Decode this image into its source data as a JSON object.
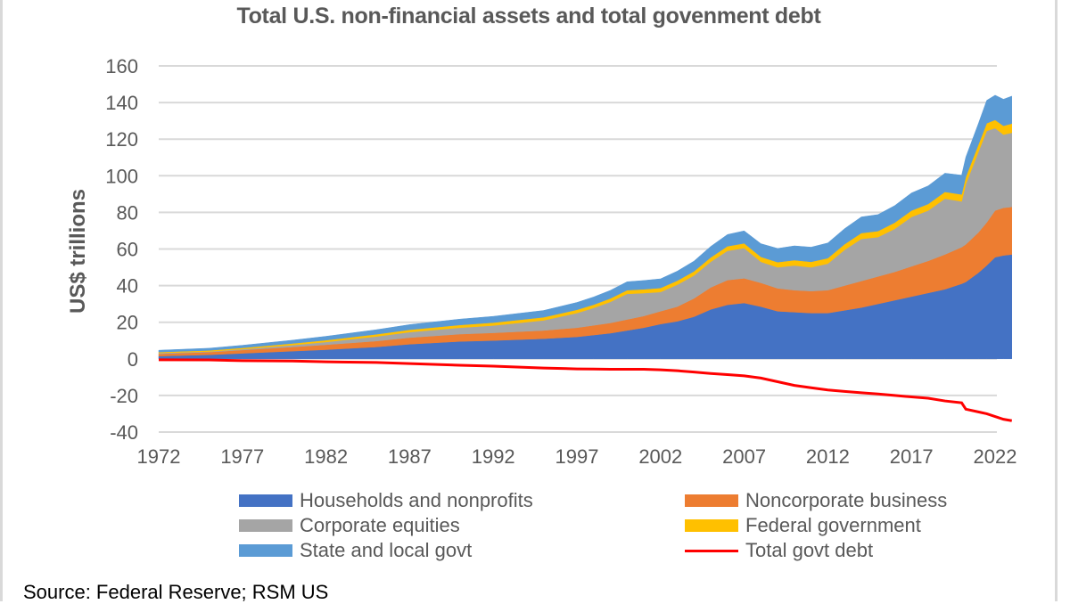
{
  "chart_data": {
    "type": "area",
    "stacked": true,
    "title": "Total U.S. non-financial assets and total govenment debt",
    "xlabel": "",
    "ylabel": "US$ trillions",
    "ylim": [
      -40,
      160
    ],
    "yticks": [
      160,
      140,
      120,
      100,
      80,
      60,
      40,
      20,
      0,
      -20,
      -40
    ],
    "xlim": [
      1972,
      2023
    ],
    "xticks": [
      "1972",
      "1977",
      "1982",
      "1987",
      "1992",
      "1997",
      "2002",
      "2007",
      "2012",
      "2017",
      "2022"
    ],
    "grid": true,
    "legend_position": "bottom",
    "x": [
      1972,
      1975,
      1977,
      1980,
      1982,
      1985,
      1987,
      1990,
      1992,
      1995,
      1997,
      1998,
      1999,
      2000,
      2001,
      2002,
      2003,
      2004,
      2005,
      2006,
      2007,
      2008,
      2009,
      2010,
      2011,
      2012,
      2013,
      2014,
      2015,
      2016,
      2017,
      2018,
      2019,
      2020,
      2020.25,
      2021,
      2021.5,
      2022,
      2022.5,
      2023
    ],
    "series": [
      {
        "name": "Households and nonprofits",
        "color": "#4472C4",
        "values": [
          1.5,
          2.2,
          3.0,
          4.2,
          5.0,
          6.5,
          8.0,
          9.5,
          10.0,
          11.0,
          12.0,
          13.0,
          14.0,
          15.5,
          17.0,
          19.0,
          20.5,
          23.0,
          27.0,
          29.5,
          30.5,
          28.5,
          26.0,
          25.5,
          25.0,
          25.0,
          26.5,
          28.0,
          30.0,
          32.0,
          34.0,
          36.0,
          38.0,
          41.0,
          42.0,
          47.0,
          51.0,
          55.5,
          56.5,
          57.0
        ]
      },
      {
        "name": "Noncorporate business",
        "color": "#ED7D31",
        "values": [
          1.2,
          1.5,
          1.8,
          2.3,
          2.7,
          3.2,
          3.6,
          4.0,
          4.2,
          4.5,
          5.0,
          5.3,
          5.6,
          6.0,
          6.4,
          7.0,
          8.0,
          10.0,
          12.0,
          13.5,
          13.5,
          13.0,
          12.5,
          12.0,
          12.0,
          12.5,
          13.5,
          14.5,
          15.0,
          15.5,
          16.5,
          17.5,
          19.0,
          20.0,
          20.5,
          22.0,
          23.5,
          25.5,
          26.0,
          26.0
        ]
      },
      {
        "name": "Corporate equities",
        "color": "#A5A5A5",
        "values": [
          0.5,
          0.3,
          0.5,
          1.0,
          1.5,
          2.5,
          3.0,
          3.5,
          4.0,
          5.5,
          8.0,
          9.5,
          11.5,
          14.0,
          12.5,
          10.5,
          12.0,
          12.5,
          14.0,
          16.0,
          16.5,
          11.5,
          11.5,
          13.5,
          13.0,
          14.5,
          19.5,
          23.0,
          21.5,
          23.5,
          27.0,
          27.5,
          30.5,
          25.0,
          33.0,
          44.0,
          50.0,
          45.0,
          40.0,
          40.5
        ]
      },
      {
        "name": "Federal government",
        "color": "#FFC000",
        "values": [
          0.5,
          0.6,
          0.7,
          0.9,
          1.0,
          1.2,
          1.3,
          1.5,
          1.6,
          1.7,
          1.8,
          1.8,
          1.9,
          2.0,
          2.1,
          2.2,
          2.2,
          2.3,
          2.4,
          2.5,
          2.6,
          2.7,
          2.8,
          2.9,
          3.0,
          3.0,
          3.1,
          3.2,
          3.3,
          3.4,
          3.5,
          3.6,
          3.7,
          3.8,
          3.9,
          4.0,
          4.2,
          4.5,
          4.8,
          5.0
        ]
      },
      {
        "name": "State and local govt",
        "color": "#5B9BD5",
        "values": [
          1.0,
          1.2,
          1.4,
          1.8,
          2.1,
          2.5,
          2.8,
          3.2,
          3.4,
          3.7,
          4.0,
          4.2,
          4.4,
          4.6,
          4.8,
          5.0,
          5.2,
          5.6,
          6.0,
          6.4,
          6.8,
          7.2,
          7.5,
          7.8,
          8.0,
          8.3,
          8.5,
          8.8,
          9.0,
          9.3,
          9.6,
          9.9,
          10.2,
          10.5,
          10.8,
          11.5,
          12.5,
          13.5,
          14.5,
          15.0
        ]
      },
      {
        "name": "Total govt debt",
        "color": "#FF0000",
        "type": "line",
        "values": [
          -0.5,
          -0.6,
          -1.0,
          -1.2,
          -1.6,
          -2.0,
          -2.6,
          -3.5,
          -4.0,
          -5.0,
          -5.5,
          -5.6,
          -5.7,
          -5.7,
          -5.7,
          -6.0,
          -6.5,
          -7.2,
          -8.0,
          -8.6,
          -9.3,
          -10.5,
          -12.5,
          -14.5,
          -15.8,
          -17.0,
          -17.8,
          -18.5,
          -19.2,
          -20.0,
          -20.8,
          -21.5,
          -23.0,
          -24.0,
          -27.5,
          -29.0,
          -30.0,
          -31.5,
          -33.0,
          -33.8
        ]
      }
    ]
  },
  "source": "Source: Federal Reserve; RSM US"
}
